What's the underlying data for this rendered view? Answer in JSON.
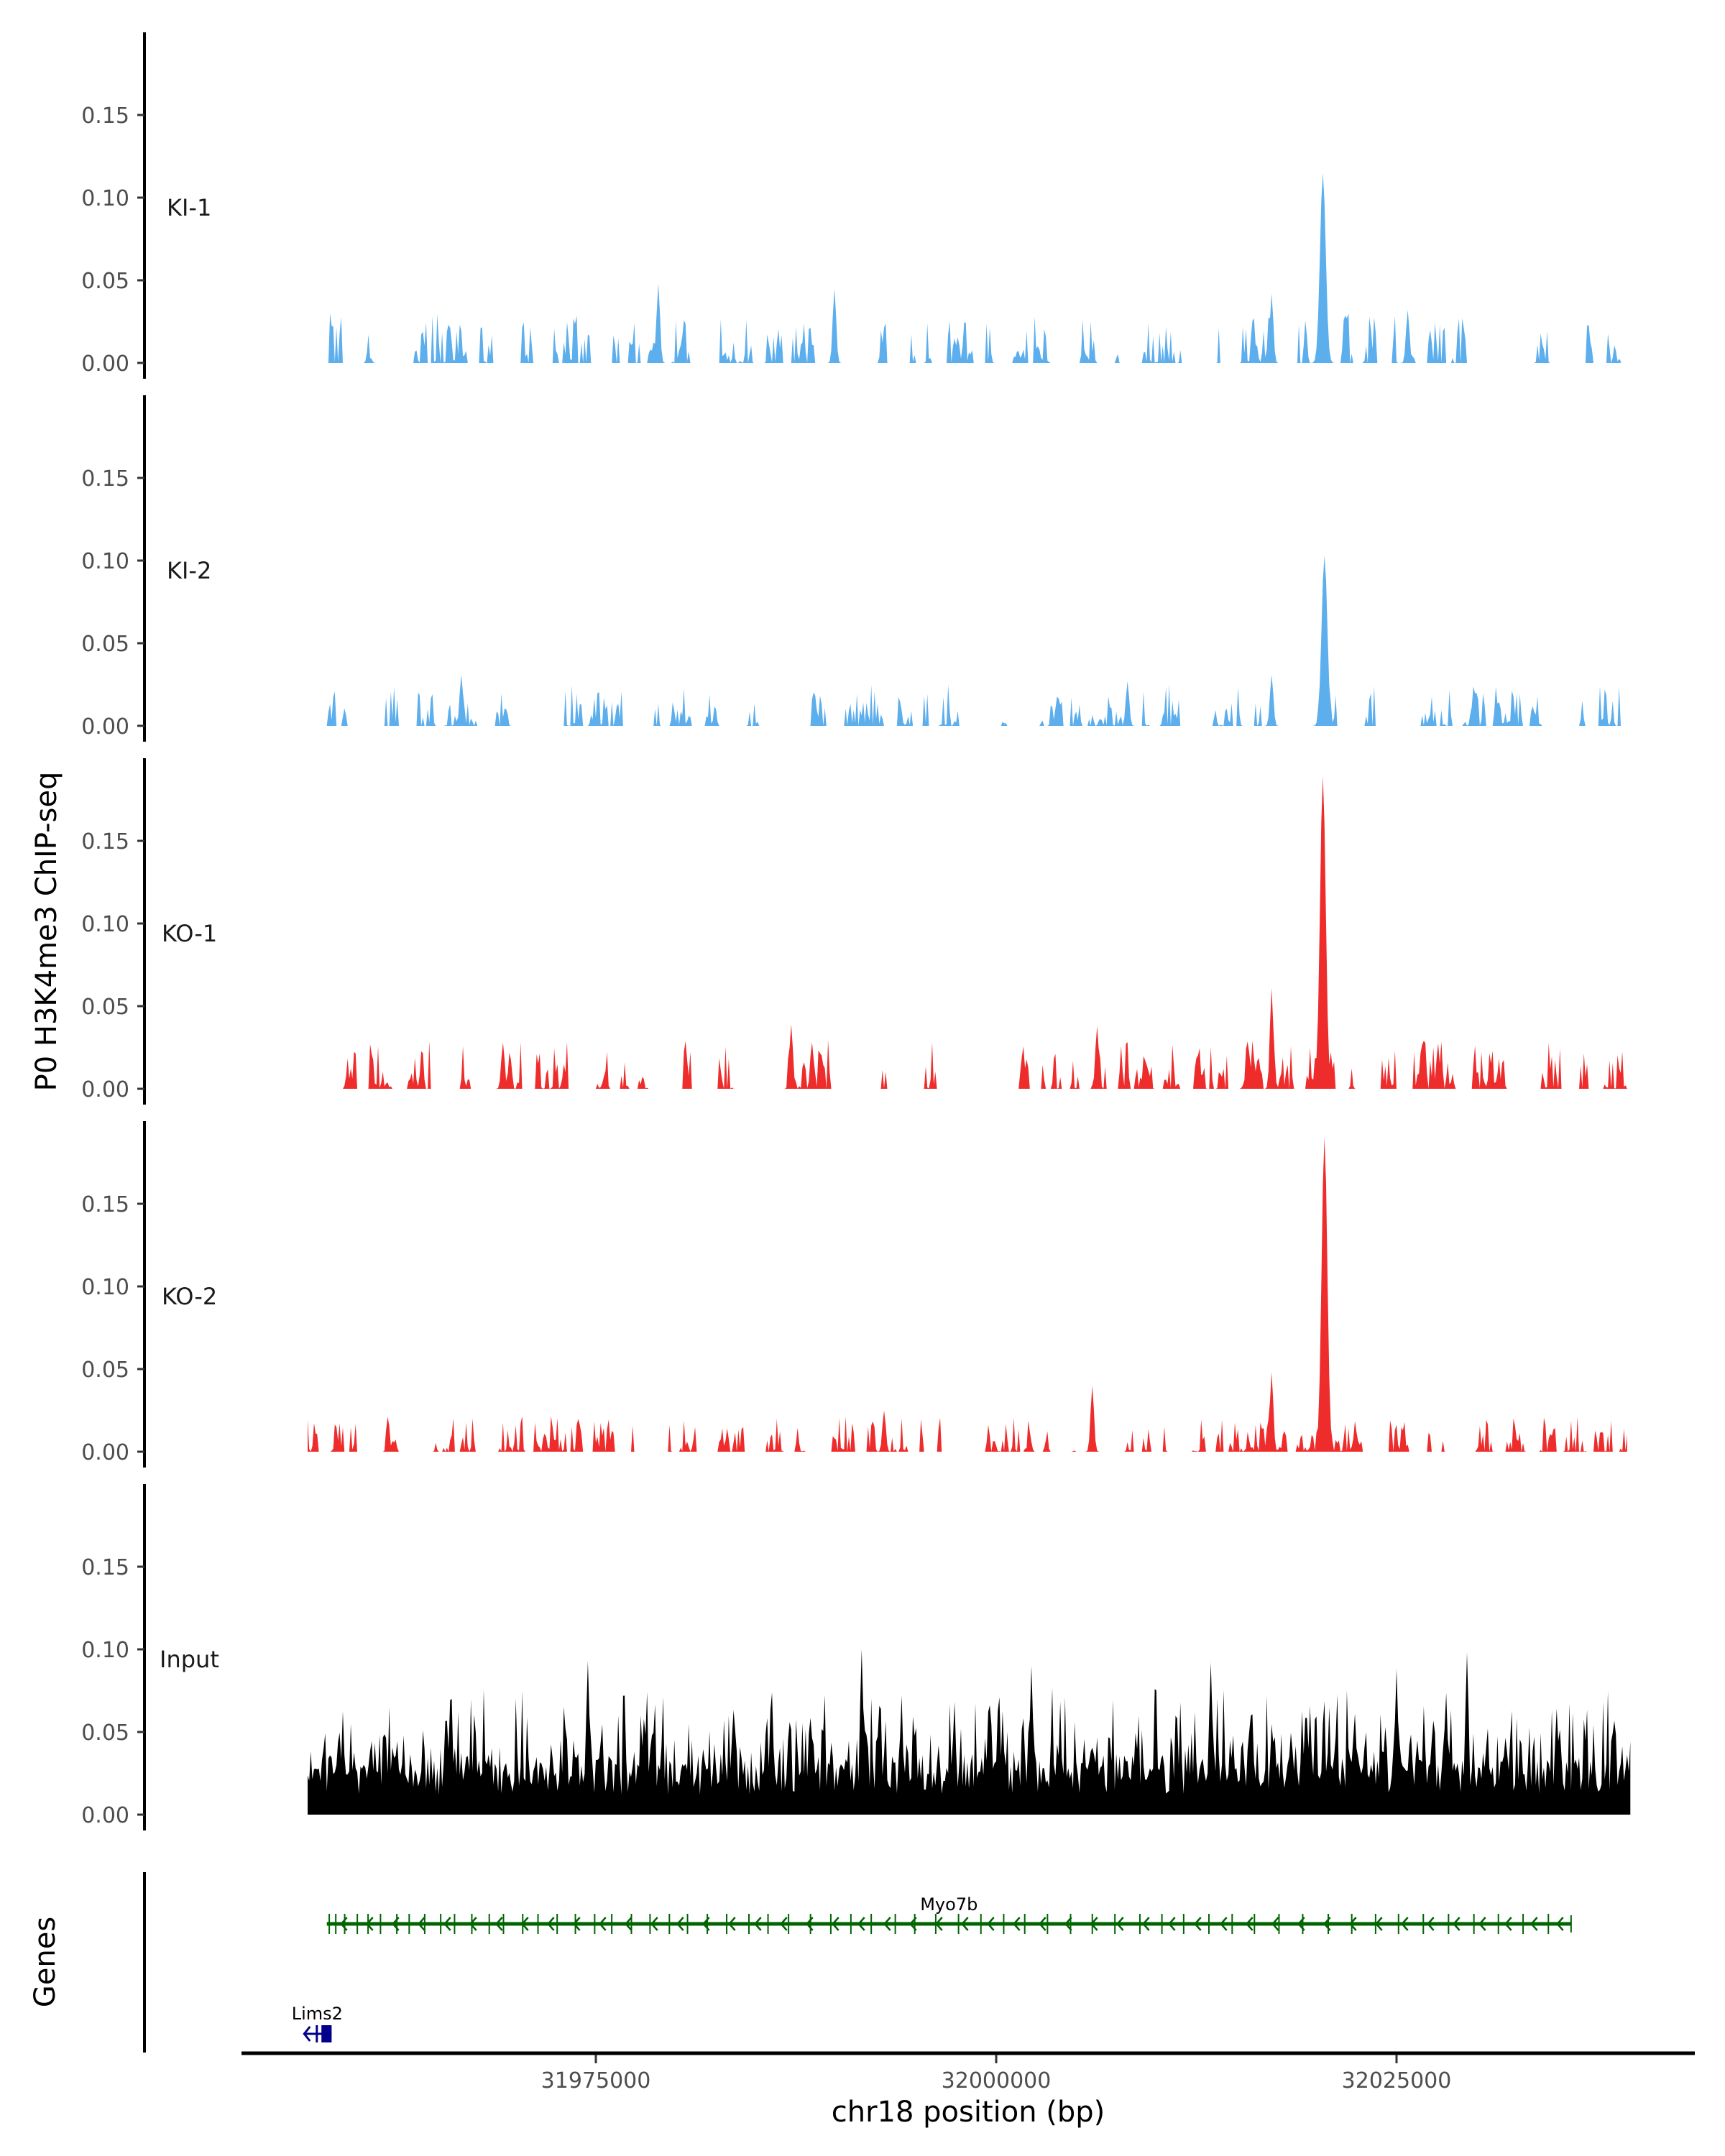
{
  "chart_data": {
    "type": "area",
    "title": "",
    "ylabel": "P0 H3K4me3 ChIP-seq",
    "xlabel": "chr18 position (bp)",
    "xlim": [
      31957000,
      32039600
    ],
    "x_ticks": [
      31975000,
      32000000,
      32025000
    ],
    "x_tick_labels": [
      "31975000",
      "32000000",
      "32025000"
    ],
    "ylim": [
      0,
      0.19
    ],
    "y_ticks": [
      0,
      0.05,
      0.1,
      0.15
    ],
    "y_tick_labels": [
      "0.00",
      "0.05",
      "0.10",
      "0.15"
    ],
    "grid": false,
    "legend": "none",
    "tracks": [
      {
        "name": "KI-1",
        "color": "#5DAEEC",
        "background_max": 0.03,
        "continuous": false,
        "start": 31957800,
        "end": 32039000,
        "seed": 11,
        "peaks": [
          {
            "x": 32020400,
            "y": 0.115
          },
          {
            "x": 32017200,
            "y": 0.042
          },
          {
            "x": 31978900,
            "y": 0.048
          },
          {
            "x": 31989900,
            "y": 0.045
          },
          {
            "x": 32025700,
            "y": 0.032
          }
        ]
      },
      {
        "name": "KI-2",
        "color": "#5DAEEC",
        "background_max": 0.025,
        "continuous": false,
        "start": 31957000,
        "end": 32039000,
        "seed": 23,
        "peaks": [
          {
            "x": 32020500,
            "y": 0.103
          },
          {
            "x": 32017200,
            "y": 0.031
          },
          {
            "x": 31966600,
            "y": 0.031
          },
          {
            "x": 32008200,
            "y": 0.027
          }
        ]
      },
      {
        "name": "KO-1",
        "color": "#EE2C2C",
        "background_max": 0.03,
        "continuous": false,
        "start": 31957000,
        "end": 32039600,
        "seed": 37,
        "peaks": [
          {
            "x": 32020400,
            "y": 0.189
          },
          {
            "x": 32017200,
            "y": 0.061
          },
          {
            "x": 31987200,
            "y": 0.039
          },
          {
            "x": 32006300,
            "y": 0.038
          },
          {
            "x": 31969200,
            "y": 0.028
          }
        ]
      },
      {
        "name": "KO-2",
        "color": "#EE2C2C",
        "background_max": 0.022,
        "continuous": false,
        "start": 31957000,
        "end": 32039400,
        "seed": 53,
        "peaks": [
          {
            "x": 32020500,
            "y": 0.19
          },
          {
            "x": 32017200,
            "y": 0.048
          },
          {
            "x": 32006000,
            "y": 0.04
          },
          {
            "x": 31993000,
            "y": 0.025
          }
        ]
      },
      {
        "name": "Input",
        "color": "#000000",
        "background_max": 0.07,
        "continuous": true,
        "start": 31957000,
        "end": 32039600,
        "seed": 71,
        "peaks": [
          {
            "x": 31974500,
            "y": 0.093
          },
          {
            "x": 31991600,
            "y": 0.1
          },
          {
            "x": 32002200,
            "y": 0.09
          },
          {
            "x": 32013400,
            "y": 0.092
          },
          {
            "x": 32025000,
            "y": 0.088
          },
          {
            "x": 32029400,
            "y": 0.098
          }
        ]
      }
    ],
    "genes_label": "Genes",
    "genes": [
      {
        "name": "Myo7b",
        "start": 31958200,
        "end": 32035900,
        "strand": "-",
        "color": "#006400",
        "exons": 62
      },
      {
        "name": "Lims2",
        "start": 31956700,
        "end": 31958500,
        "strand": "-",
        "color": "#00008B",
        "exons": 3
      }
    ]
  }
}
